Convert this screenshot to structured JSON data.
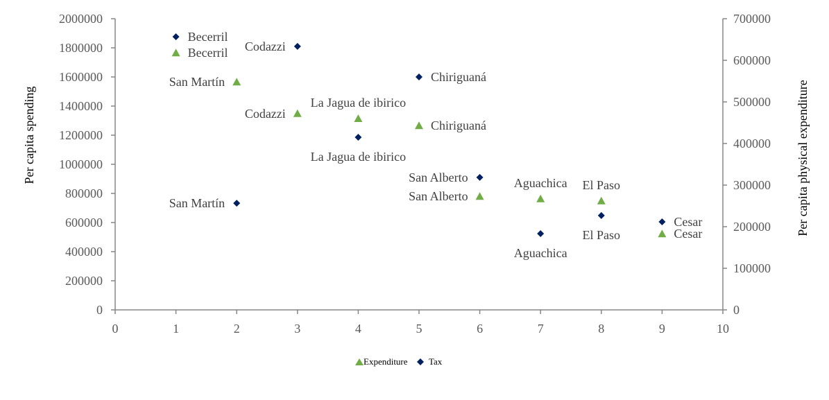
{
  "chart_data": {
    "type": "scatter",
    "title": "",
    "xlabel": "",
    "ylabel": "Per capita spending",
    "y2label": "Per capita physical expenditure",
    "xlim": [
      0,
      10
    ],
    "ylim": [
      0,
      2000000
    ],
    "y2lim": [
      0,
      700000
    ],
    "x_ticks": [
      0,
      1,
      2,
      3,
      4,
      5,
      6,
      7,
      8,
      9,
      10
    ],
    "y_ticks": [
      0,
      200000,
      400000,
      600000,
      800000,
      1000000,
      1200000,
      1400000,
      1600000,
      1800000,
      2000000
    ],
    "y2_ticks": [
      0,
      100000,
      200000,
      300000,
      400000,
      500000,
      600000,
      700000
    ],
    "grid": false,
    "legend_position": "bottom",
    "series": [
      {
        "name": "Expenditure",
        "axis": "right",
        "marker": "triangle",
        "color": "#70AD47",
        "points": [
          {
            "x": 1,
            "y": 618000,
            "label": "Becerril",
            "label_pos": "right"
          },
          {
            "x": 2,
            "y": 548000,
            "label": "San Martín",
            "label_pos": "left"
          },
          {
            "x": 3,
            "y": 472000,
            "label": "Codazzi",
            "label_pos": "left"
          },
          {
            "x": 4,
            "y": 460000,
            "label": "La Jagua de ibirico",
            "label_pos": "above"
          },
          {
            "x": 5,
            "y": 443000,
            "label": "Chiriguaná",
            "label_pos": "right"
          },
          {
            "x": 6,
            "y": 273000,
            "label": "San Alberto",
            "label_pos": "left"
          },
          {
            "x": 7,
            "y": 267000,
            "label": "Aguachica",
            "label_pos": "above"
          },
          {
            "x": 8,
            "y": 262000,
            "label": "El Paso",
            "label_pos": "above"
          },
          {
            "x": 9,
            "y": 183000,
            "label": "Cesar",
            "label_pos": "right"
          }
        ]
      },
      {
        "name": "Tax",
        "axis": "left",
        "marker": "diamond",
        "color": "#002060",
        "points": [
          {
            "x": 1,
            "y": 1876000,
            "label": "Becerril",
            "label_pos": "right"
          },
          {
            "x": 2,
            "y": 733000,
            "label": "San Martín",
            "label_pos": "left"
          },
          {
            "x": 3,
            "y": 1810000,
            "label": "Codazzi",
            "label_pos": "left"
          },
          {
            "x": 4,
            "y": 1186000,
            "label": "La Jagua de ibirico",
            "label_pos": "below"
          },
          {
            "x": 5,
            "y": 1600000,
            "label": "Chiriguaná",
            "label_pos": "right"
          },
          {
            "x": 6,
            "y": 910000,
            "label": "San Alberto",
            "label_pos": "left"
          },
          {
            "x": 7,
            "y": 524000,
            "label": "Aguachica",
            "label_pos": "below"
          },
          {
            "x": 8,
            "y": 648000,
            "label": "El Paso",
            "label_pos": "below"
          },
          {
            "x": 9,
            "y": 605000,
            "label": "Cesar",
            "label_pos": "right"
          }
        ]
      }
    ]
  }
}
